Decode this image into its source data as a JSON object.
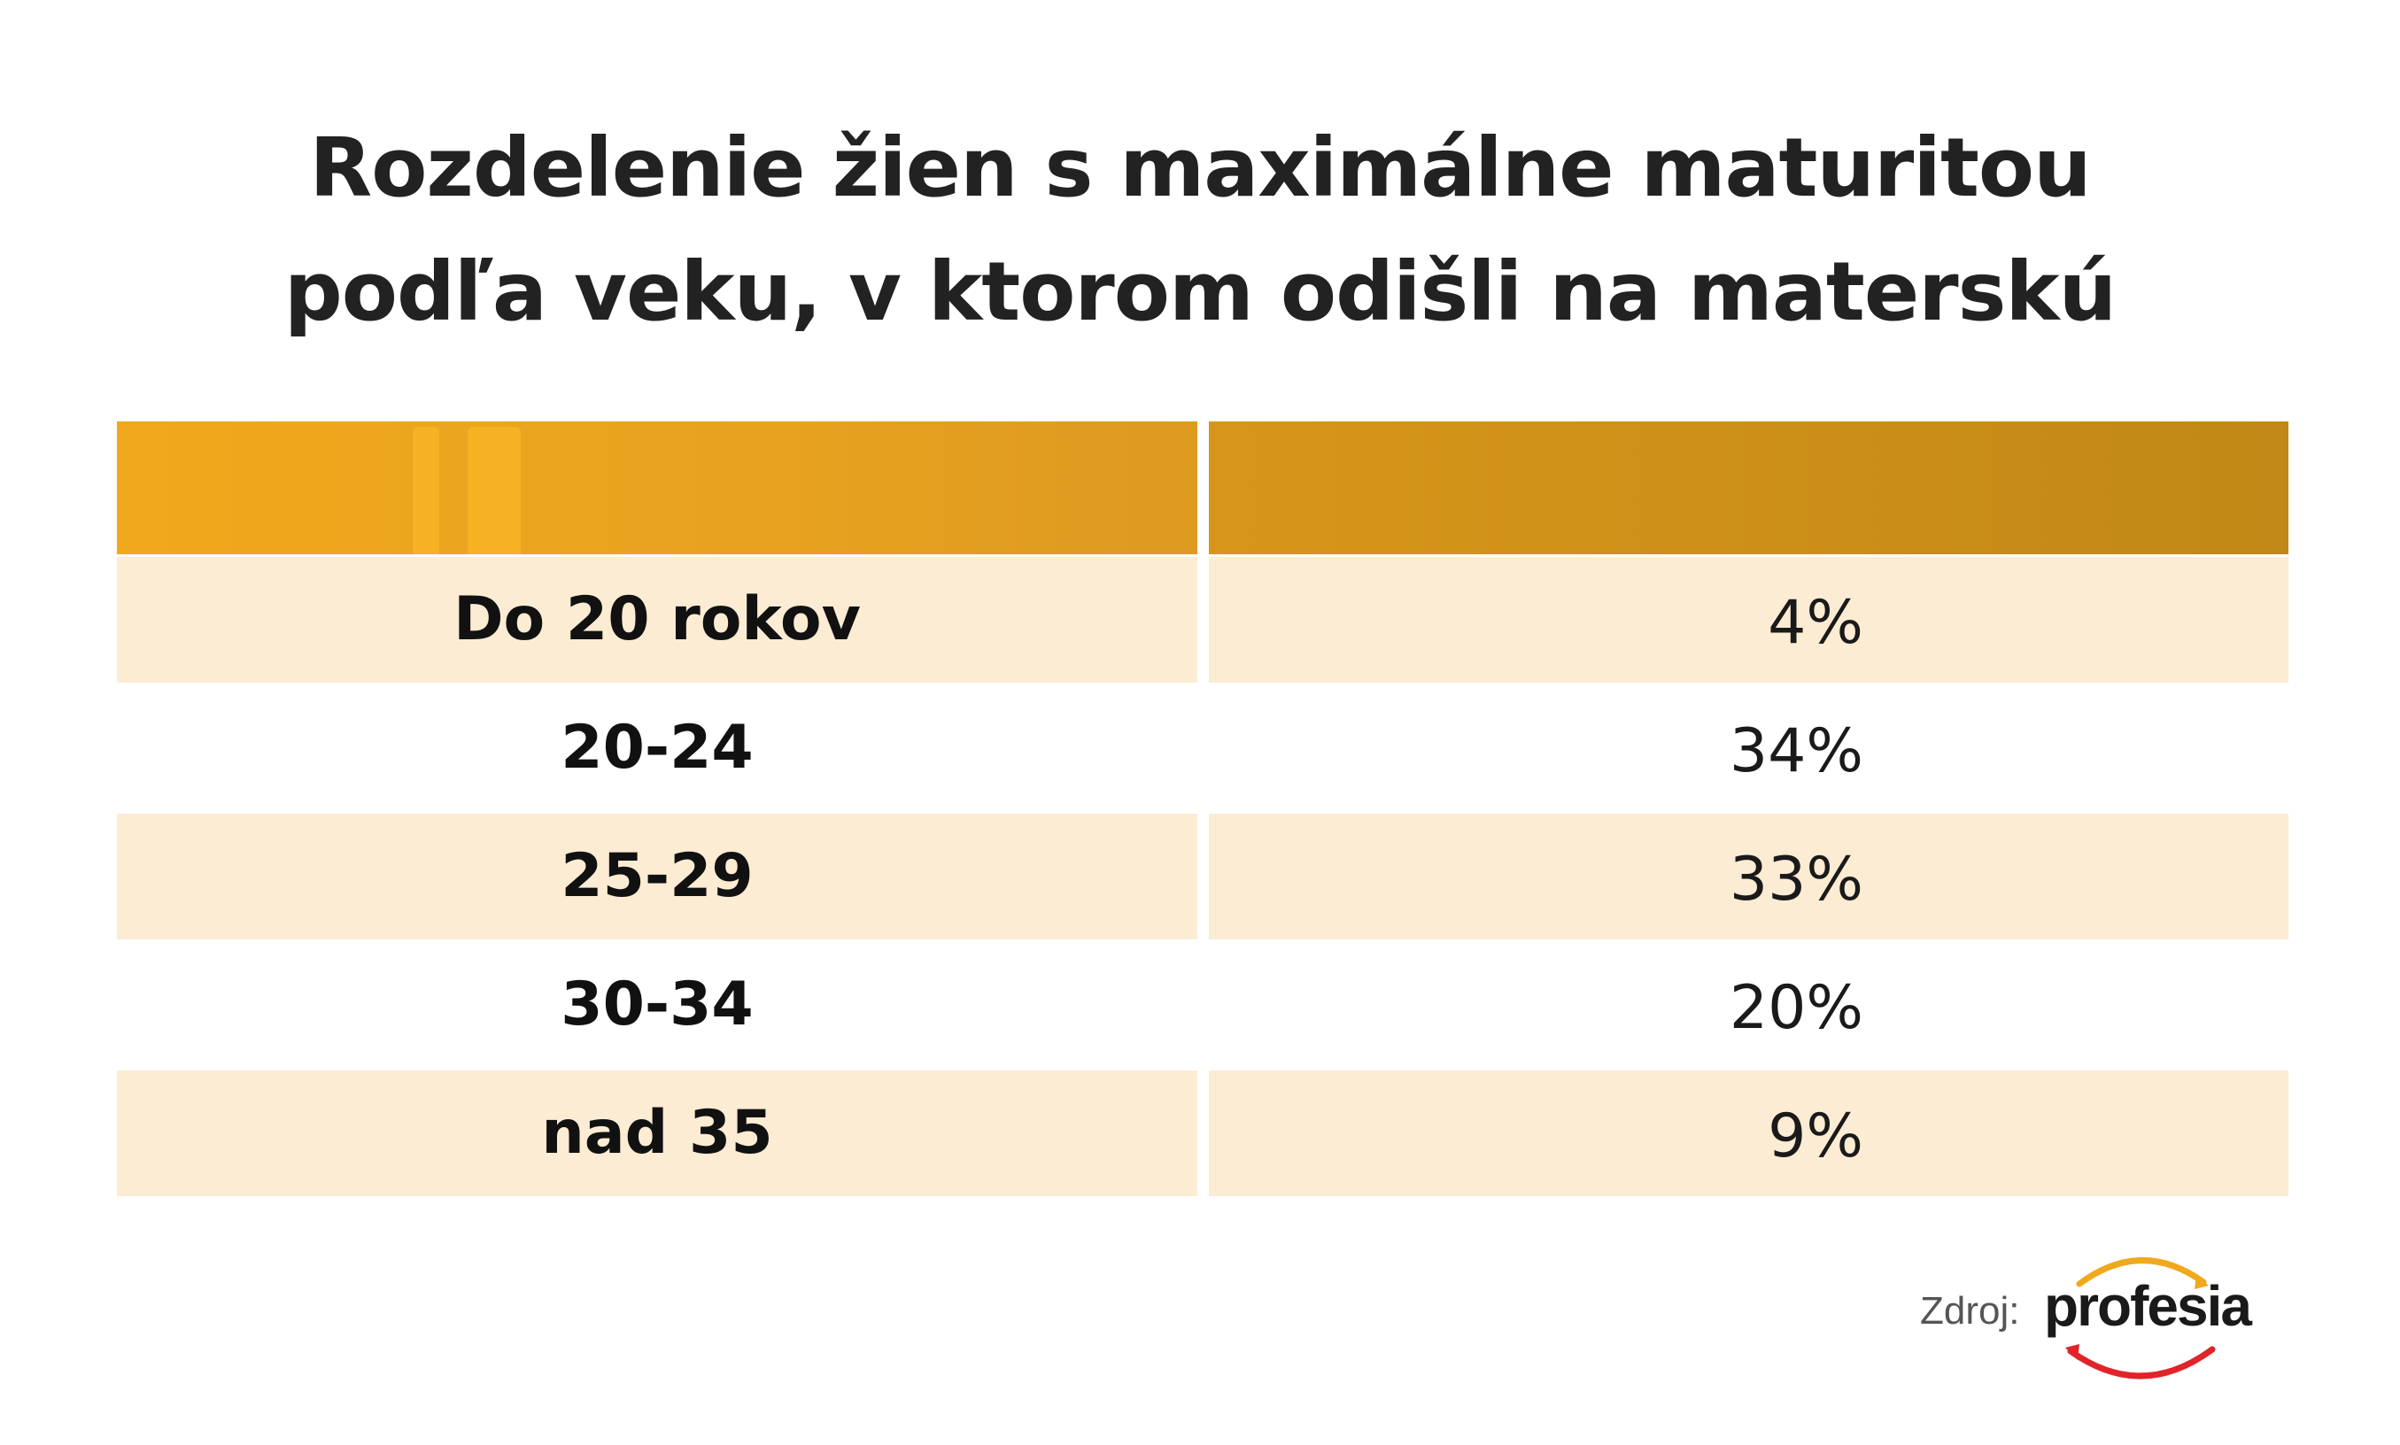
{
  "title": {
    "line1": "Rozdelenie žien s maximálne maturitou",
    "line2": "podľa veku, v ktorom odišli na materskú"
  },
  "source": {
    "label": "Zdroj:",
    "logo_text": "profesia"
  },
  "colors": {
    "header_left": "#f0a81c",
    "header_right": "#c08816",
    "row_shade": "#fcecd3",
    "logo_arc_top": "#f0a81c",
    "logo_arc_bottom": "#e0242a"
  },
  "chart_data": {
    "type": "table",
    "columns": [
      "",
      ""
    ],
    "rows": [
      {
        "category": "Do 20 rokov",
        "value": 4,
        "label": "4%"
      },
      {
        "category": "20-24",
        "value": 34,
        "label": "34%"
      },
      {
        "category": "25-29",
        "value": 33,
        "label": "33%"
      },
      {
        "category": "30-34",
        "value": 20,
        "label": "20%"
      },
      {
        "category": "nad 35",
        "value": 9,
        "label": "9%"
      }
    ]
  }
}
